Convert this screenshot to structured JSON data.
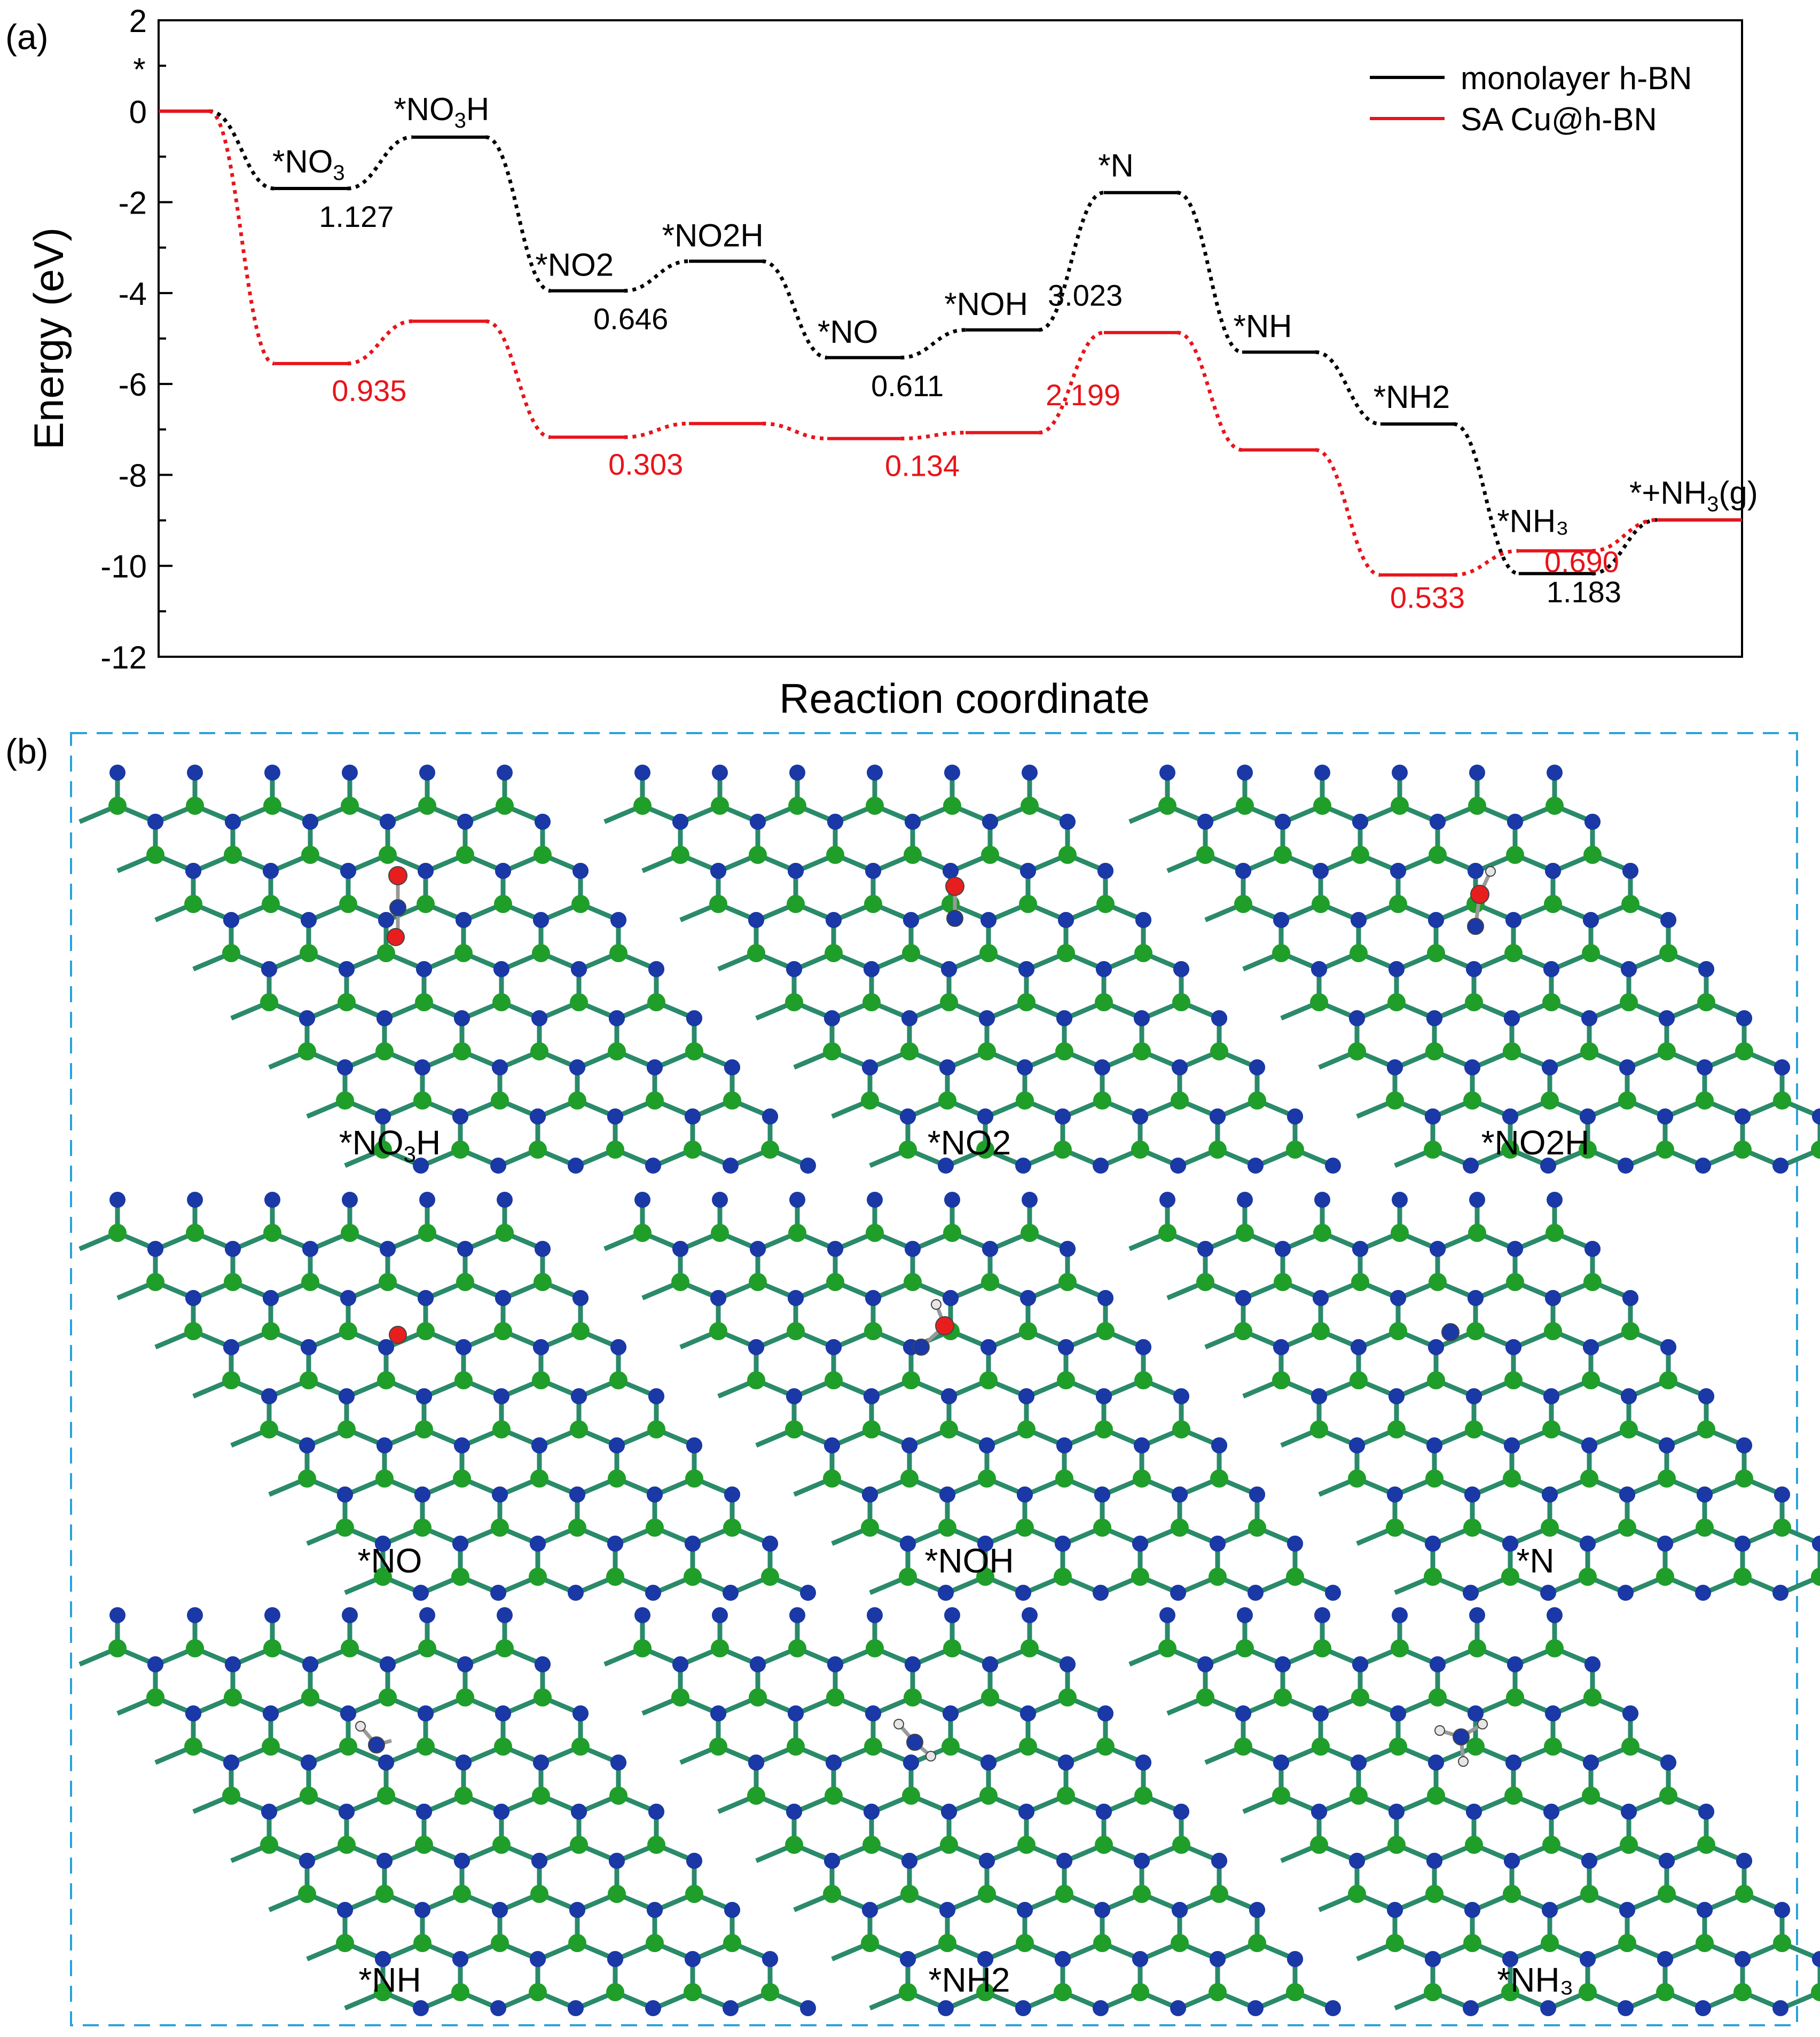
{
  "panel_a": {
    "label": "(a)",
    "legend": {
      "position": "top-right",
      "items": [
        {
          "label": "monolayer h-BN",
          "color": "#000000"
        },
        {
          "label": "SA Cu@h-BN",
          "color": "#e8141b"
        }
      ]
    }
  },
  "panel_b": {
    "label": "(b)",
    "frame_color": "#29a3dc",
    "atom_colors": {
      "boron": "#1f9e2a",
      "nitrogen": "#1a38a6",
      "oxygen": "#e81e1e",
      "hydrogen": "#e6e6e6",
      "bond": "#2a8a6a"
    },
    "structures": [
      {
        "label": "*NO",
        "sub": "3",
        "label_end": "H",
        "adsorbate": "no3h"
      },
      {
        "label": "*NO2",
        "sub": "",
        "label_end": "",
        "adsorbate": "no2"
      },
      {
        "label": "*NO2H",
        "sub": "",
        "label_end": "",
        "adsorbate": "no2h"
      },
      {
        "label": "*NO",
        "sub": "",
        "label_end": "",
        "adsorbate": "no"
      },
      {
        "label": "*NOH",
        "sub": "",
        "label_end": "",
        "adsorbate": "noh"
      },
      {
        "label": "*N",
        "sub": "",
        "label_end": "",
        "adsorbate": "n"
      },
      {
        "label": "*NH",
        "sub": "",
        "label_end": "",
        "adsorbate": "nh"
      },
      {
        "label": "*NH2",
        "sub": "",
        "label_end": "",
        "adsorbate": "nh2"
      },
      {
        "label": "*NH₃",
        "sub": "",
        "label_end": "",
        "adsorbate": "nh3"
      }
    ]
  },
  "chart_data": {
    "type": "line",
    "title": "",
    "xlabel": "Reaction coordinate",
    "ylabel": "Energy (eV)",
    "ylim": [
      -12,
      2
    ],
    "yticks": [
      2,
      0,
      -2,
      -4,
      -6,
      -8,
      -10,
      -12
    ],
    "ytick_labels": [
      "2",
      "0",
      "-2",
      "-4",
      "-6",
      "-8",
      "-10",
      "-12"
    ],
    "grid": false,
    "steps": [
      {
        "label": "*",
        "sub": "",
        "tail": ""
      },
      {
        "label": "*NO",
        "sub": "3",
        "tail": ""
      },
      {
        "label": "*NO",
        "sub": "3",
        "tail": "H"
      },
      {
        "label": "*NO2",
        "sub": "",
        "tail": ""
      },
      {
        "label": "*NO2H",
        "sub": "",
        "tail": ""
      },
      {
        "label": "*NO",
        "sub": "",
        "tail": ""
      },
      {
        "label": "*NOH",
        "sub": "",
        "tail": ""
      },
      {
        "label": "*N",
        "sub": "",
        "tail": ""
      },
      {
        "label": "*NH",
        "sub": "",
        "tail": ""
      },
      {
        "label": "*NH2",
        "sub": "",
        "tail": ""
      },
      {
        "label": "*NH₃",
        "sub": "",
        "tail": ""
      },
      {
        "label": "*+NH",
        "sub": "3",
        "tail": "(g)"
      }
    ],
    "series": [
      {
        "name": "monolayer h-BN",
        "color": "#000000",
        "values": [
          0,
          -1.7,
          -0.57,
          -3.95,
          -3.3,
          -5.42,
          -4.81,
          -1.79,
          -5.3,
          -6.88,
          -10.17,
          -8.99
        ],
        "barriers": [
          {
            "after_step": 1,
            "text": "1.127"
          },
          {
            "after_step": 3,
            "text": "0.646"
          },
          {
            "after_step": 5,
            "text": "0.611"
          },
          {
            "after_step": 6,
            "text": "3.023"
          },
          {
            "after_step": 10,
            "text": "1.183"
          }
        ]
      },
      {
        "name": "SA Cu@h-BN",
        "color": "#e8141b",
        "values": [
          0,
          -5.55,
          -4.62,
          -7.17,
          -6.87,
          -7.2,
          -7.07,
          -4.87,
          -7.45,
          -10.2,
          -9.67,
          -8.99
        ],
        "barriers": [
          {
            "after_step": 1,
            "text": "0.935"
          },
          {
            "after_step": 3,
            "text": "0.303"
          },
          {
            "after_step": 5,
            "text": "0.134"
          },
          {
            "after_step": 6,
            "text": "2.199"
          },
          {
            "after_step": 9,
            "text": "0.533"
          },
          {
            "after_step": 10,
            "text": "0.690"
          }
        ]
      }
    ]
  }
}
